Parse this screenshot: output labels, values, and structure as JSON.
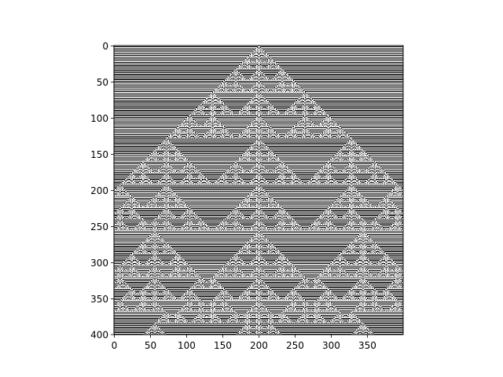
{
  "chart_data": {
    "type": "heatmap",
    "title": "",
    "xlabel": "",
    "ylabel": "",
    "colormap": "binary",
    "colors": {
      "on": "#000000",
      "off": "#ffffff"
    },
    "content": "elementary cellular automaton evolution from a single centered cell",
    "rule": 105,
    "width": 400,
    "height": 400,
    "xlim": [
      0,
      399
    ],
    "ylim": [
      400,
      0
    ],
    "x_ticks": [
      0,
      50,
      100,
      150,
      200,
      250,
      300,
      350
    ],
    "y_ticks": [
      0,
      50,
      100,
      150,
      200,
      250,
      300,
      350,
      400
    ],
    "x_tick_labels": [
      "0",
      "50",
      "100",
      "150",
      "200",
      "250",
      "300",
      "350"
    ],
    "y_tick_labels": [
      "0",
      "50",
      "100",
      "150",
      "200",
      "250",
      "300",
      "350",
      "400"
    ],
    "grid": false,
    "legend": "none"
  }
}
